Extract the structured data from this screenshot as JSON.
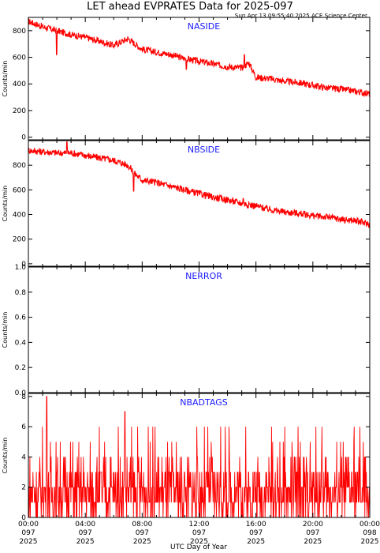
{
  "title": "LET ahead EVPRATES Data for 2025-097",
  "timestamp": "Sun Apr 13 09:55:40 2025 ACE Science Center",
  "xlabel": "UTC Day of Year",
  "colors": {
    "series": "#ff0000",
    "label": "#1a1aff",
    "axis": "#000000"
  },
  "chart_data": [
    {
      "type": "line",
      "title": "NASIDE",
      "ylabel": "Counts/min",
      "ylim": [
        -20,
        900
      ],
      "yticks": [
        0,
        200,
        400,
        600,
        800
      ],
      "xlim": [
        0,
        24
      ],
      "trend_x": [
        0,
        1,
        2,
        3,
        4,
        5,
        6,
        7,
        8,
        9,
        10,
        11,
        12,
        13,
        14,
        15,
        15.5,
        16,
        17,
        18,
        19,
        20,
        21,
        22,
        23,
        24
      ],
      "trend_y": [
        870,
        830,
        800,
        770,
        750,
        720,
        690,
        740,
        660,
        640,
        620,
        590,
        570,
        550,
        530,
        520,
        560,
        450,
        440,
        420,
        410,
        390,
        370,
        360,
        345,
        325
      ],
      "noise": 25,
      "spikes": [
        [
          15.2,
          620
        ],
        [
          2.0,
          620
        ],
        [
          11.1,
          510
        ]
      ]
    },
    {
      "type": "line",
      "title": "NBSIDE",
      "ylabel": "Counts/min",
      "ylim": [
        -20,
        1000
      ],
      "yticks": [
        0,
        200,
        400,
        600,
        800
      ],
      "xlim": [
        0,
        24
      ],
      "trend_x": [
        0,
        1,
        2,
        3,
        4,
        5,
        6,
        7,
        7.5,
        8,
        9,
        10,
        11,
        12,
        13,
        14,
        15,
        16,
        17,
        18,
        19,
        20,
        21,
        22,
        23,
        24
      ],
      "trend_y": [
        920,
        910,
        900,
        900,
        880,
        860,
        840,
        800,
        730,
        680,
        660,
        630,
        600,
        570,
        540,
        520,
        490,
        470,
        440,
        420,
        410,
        390,
        380,
        360,
        350,
        320
      ],
      "noise": 28,
      "spikes": [
        [
          2.7,
          990
        ],
        [
          7.4,
          590
        ],
        [
          15.1,
          530
        ]
      ]
    },
    {
      "type": "line",
      "title": "NERROR",
      "ylabel": "Counts/min",
      "ylim": [
        0,
        1
      ],
      "yticks": [
        0.0,
        0.2,
        0.4,
        0.6,
        0.8,
        1.0
      ],
      "xlim": [
        0,
        24
      ],
      "trend_x": [
        0,
        24
      ],
      "trend_y": [
        0,
        0
      ],
      "noise": 0,
      "spikes": []
    },
    {
      "type": "line",
      "title": "NBADTAGS",
      "ylabel": "Counts/min",
      "ylim": [
        0,
        8.2
      ],
      "yticks": [
        0,
        2,
        4,
        6,
        8
      ],
      "xlim": [
        0,
        24
      ],
      "trend_x": [
        0,
        24
      ],
      "trend_y": [
        2,
        2
      ],
      "noise": 0,
      "discrete": true,
      "spikes": [
        [
          1.3,
          8
        ],
        [
          6.8,
          7
        ]
      ]
    }
  ],
  "xticks": [
    {
      "time": "00:00",
      "day": "097",
      "year": "2025"
    },
    {
      "time": "04:00",
      "day": "097",
      "year": "2025"
    },
    {
      "time": "08:00",
      "day": "097",
      "year": "2025"
    },
    {
      "time": "12:00",
      "day": "097",
      "year": "2025"
    },
    {
      "time": "16:00",
      "day": "097",
      "year": "2025"
    },
    {
      "time": "20:00",
      "day": "097",
      "year": "2025"
    },
    {
      "time": "00:00",
      "day": "098",
      "year": "2025"
    }
  ]
}
